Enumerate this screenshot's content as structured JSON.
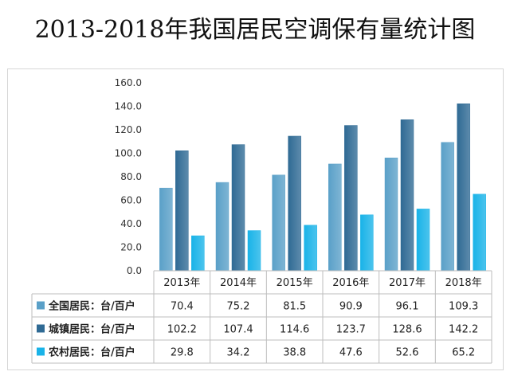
{
  "title": "2013-2018年我国居民空调保有量统计图",
  "colors": {
    "s0": "#5aa0c8",
    "s1": "#2f6a94",
    "s2": "#19b3e8"
  },
  "chart_data": {
    "type": "bar",
    "categories": [
      "2013年",
      "2014年",
      "2015年",
      "2016年",
      "2017年",
      "2018年"
    ],
    "series": [
      {
        "name": "全国居民：台/百户",
        "values": [
          70.4,
          75.2,
          81.5,
          90.9,
          96.1,
          109.3
        ]
      },
      {
        "name": "城镇居民：台/百户",
        "values": [
          102.2,
          107.4,
          114.6,
          123.7,
          128.6,
          142.2
        ]
      },
      {
        "name": "农村居民：台/百户",
        "values": [
          29.8,
          34.2,
          38.8,
          47.6,
          52.6,
          65.2
        ]
      }
    ],
    "yticks": [
      "0.0",
      "20.0",
      "40.0",
      "60.0",
      "80.0",
      "100.0",
      "120.0",
      "140.0",
      "160.0"
    ],
    "ylim": [
      0,
      160
    ],
    "grid": false,
    "legend": "data-table"
  }
}
